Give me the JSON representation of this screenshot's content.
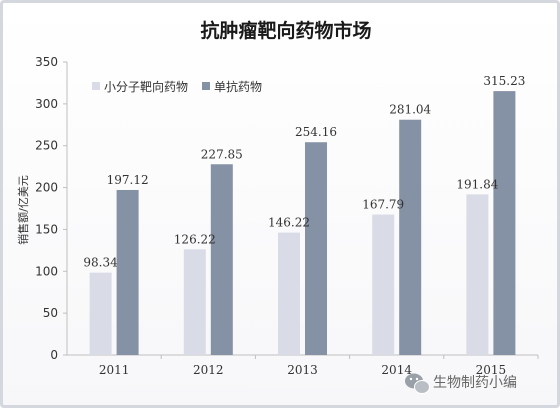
{
  "chart_data": {
    "type": "bar",
    "title": "抗肿瘤靶向药物市场",
    "ylabel": "销售额/亿美元",
    "xlabel": "",
    "categories": [
      "2011",
      "2012",
      "2013",
      "2014",
      "2015"
    ],
    "series": [
      {
        "name": "小分子靶向药物",
        "values": [
          98.34,
          126.22,
          146.22,
          167.79,
          191.84
        ],
        "labels": [
          "98.34",
          "126.22",
          "146.22",
          "167.79",
          "191.84"
        ],
        "color": "#d9dce6"
      },
      {
        "name": "单抗药物",
        "values": [
          197.12,
          227.85,
          254.16,
          281.04,
          315.23
        ],
        "labels": [
          "197.12",
          "227.85",
          "254.16",
          "281.04",
          "315.23"
        ],
        "color": "#8591a5"
      }
    ],
    "ylim": [
      0,
      350
    ],
    "yticks": [
      0,
      50,
      100,
      150,
      200,
      250,
      300,
      350
    ],
    "grid": false,
    "legend_position": "top-left"
  },
  "watermark": {
    "text": "生物制药小编",
    "icon": "wechat-icon"
  }
}
